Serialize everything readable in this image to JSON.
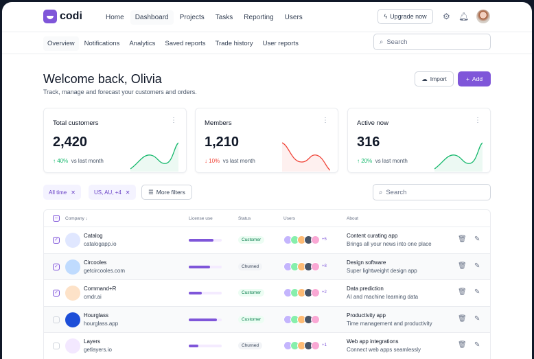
{
  "brand": {
    "name": "codi",
    "accent": "#7f56d9"
  },
  "nav": {
    "items": [
      "Home",
      "Dashboard",
      "Projects",
      "Tasks",
      "Reporting",
      "Users"
    ],
    "active": "Dashboard",
    "upgrade": "Upgrade now"
  },
  "subnav": {
    "tabs": [
      "Overview",
      "Notifications",
      "Analytics",
      "Saved reports",
      "Trade history",
      "User reports"
    ],
    "active": "Overview",
    "search_placeholder": "Search"
  },
  "page": {
    "title": "Welcome back, Olivia",
    "subtitle": "Track, manage and forecast your customers and orders.",
    "import": "Import",
    "add": "Add"
  },
  "stats": [
    {
      "title": "Total customers",
      "value": "2,420",
      "change": "40%",
      "direction": "up",
      "compare": "vs last month",
      "color": "#12b76a"
    },
    {
      "title": "Members",
      "value": "1,210",
      "change": "10%",
      "direction": "down",
      "compare": "vs last month",
      "color": "#f04438"
    },
    {
      "title": "Active now",
      "value": "316",
      "change": "20%",
      "direction": "up",
      "compare": "vs last month",
      "color": "#12b76a"
    }
  ],
  "filters": {
    "chips": [
      "All time",
      "US, AU, +4"
    ],
    "more": "More filters",
    "search_placeholder": "Search"
  },
  "table": {
    "headers": {
      "company": "Company",
      "license": "License use",
      "status": "Status",
      "users": "Users",
      "about": "About"
    },
    "rows": [
      {
        "name": "Catalog",
        "domain": "catalogapp.io",
        "license": 0.75,
        "status": "Customer",
        "extra": "+5",
        "about": "Content curating app",
        "desc": "Brings all your news into one place",
        "checked": true
      },
      {
        "name": "Circooles",
        "domain": "getcircooles.com",
        "license": 0.65,
        "status": "Churned",
        "extra": "+8",
        "about": "Design software",
        "desc": "Super lightweight design app",
        "checked": true
      },
      {
        "name": "Command+R",
        "domain": "cmdr.ai",
        "license": 0.4,
        "status": "Customer",
        "extra": "+2",
        "about": "Data prediction",
        "desc": "AI and machine learning data",
        "checked": true
      },
      {
        "name": "Hourglass",
        "domain": "hourglass.app",
        "license": 0.85,
        "status": "Customer",
        "extra": "",
        "about": "Productivity app",
        "desc": "Time management and productivity",
        "checked": false
      },
      {
        "name": "Layers",
        "domain": "getlayers.io",
        "license": 0.3,
        "status": "Churned",
        "extra": "+1",
        "about": "Web app integrations",
        "desc": "Connect web apps seamlessly",
        "checked": false
      }
    ]
  }
}
